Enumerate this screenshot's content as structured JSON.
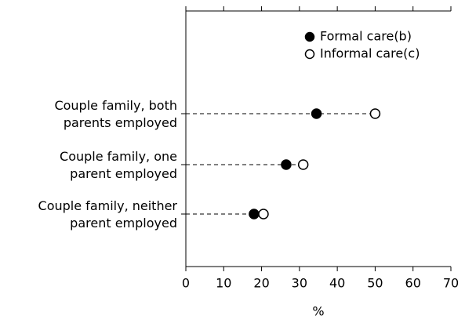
{
  "chart_data": {
    "type": "dot",
    "categories": [
      "Couple family, both\nparents employed",
      "Couple family, one\nparent employed",
      "Couple family, neither\nparent employed"
    ],
    "series": [
      {
        "name": "Formal care(b)",
        "color": "#000000",
        "values": [
          34.5,
          26.5,
          18
        ]
      },
      {
        "name": "Informal care(c)",
        "color": "#ffffff",
        "values": [
          50,
          31,
          20.5
        ]
      }
    ],
    "xlabel": "%",
    "xlim": [
      0,
      70
    ],
    "xticks": [
      0,
      10,
      20,
      30,
      40,
      50,
      60,
      70
    ],
    "legend": "top-right"
  }
}
